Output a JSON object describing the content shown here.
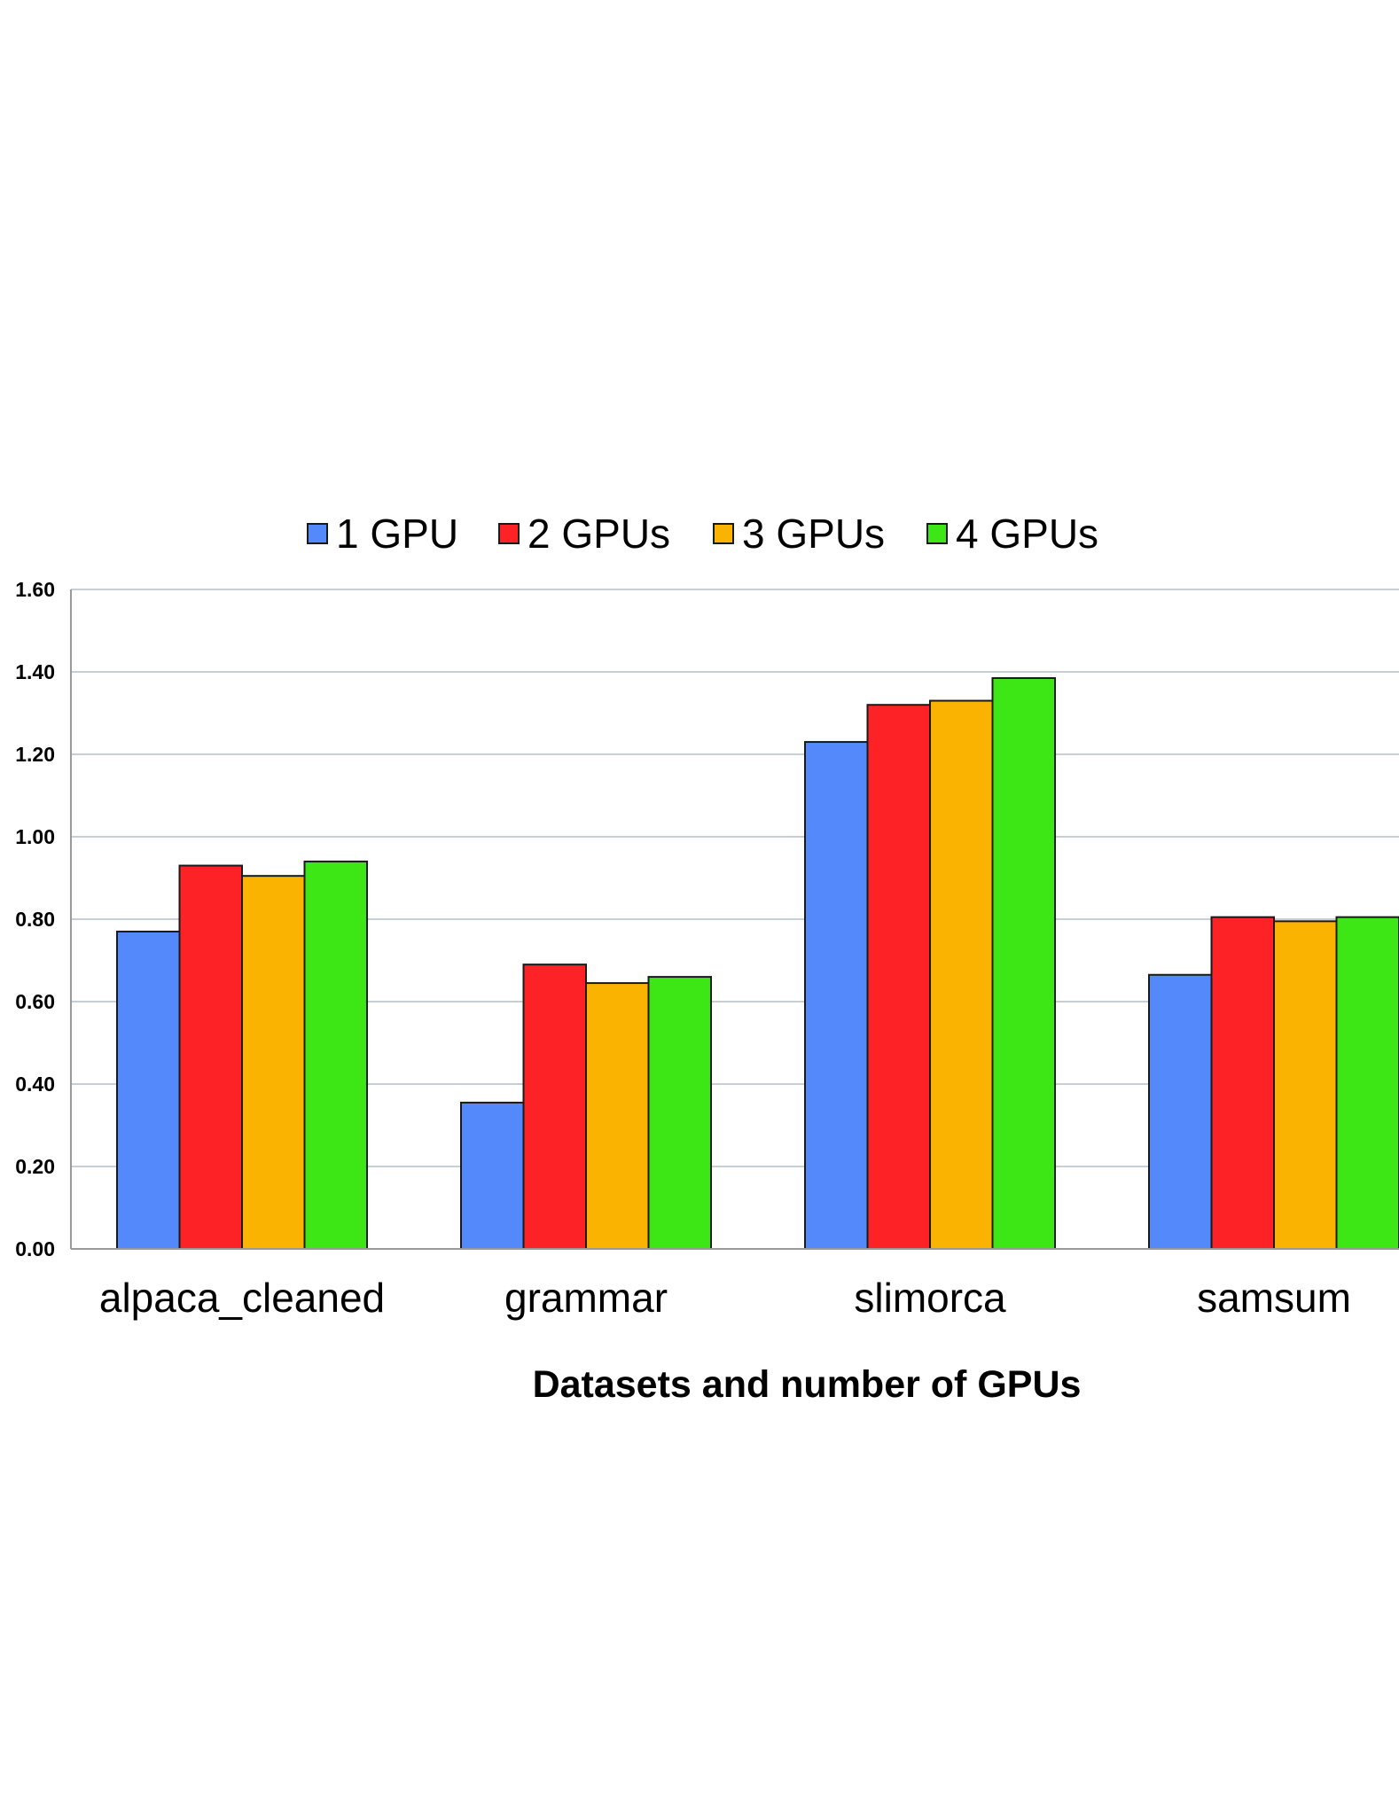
{
  "chart_data": {
    "type": "bar",
    "title": "",
    "xlabel": "Datasets and number of GPUs",
    "ylabel": "",
    "ylim": [
      0,
      1.6
    ],
    "yticks": [
      "0.00",
      "0.20",
      "0.40",
      "0.60",
      "0.80",
      "1.00",
      "1.20",
      "1.40",
      "1.60"
    ],
    "grid": true,
    "legend_position": "top",
    "categories": [
      "alpaca_cleaned",
      "grammar",
      "slimorca",
      "samsum"
    ],
    "series": [
      {
        "name": "1 GPU",
        "color": "#5389FB",
        "values": [
          0.77,
          0.355,
          1.23,
          0.665
        ]
      },
      {
        "name": "2 GPUs",
        "color": "#FD2225",
        "values": [
          0.93,
          0.69,
          1.32,
          0.805
        ]
      },
      {
        "name": "3 GPUs",
        "color": "#FBB302",
        "values": [
          0.905,
          0.645,
          1.33,
          0.795
        ]
      },
      {
        "name": "4 GPUs",
        "color": "#3DE716",
        "values": [
          0.94,
          0.66,
          1.385,
          0.805
        ]
      }
    ],
    "colors": {
      "grid": "#C7CFD6",
      "axis": "#999999",
      "bar_outline": "#1A1A1A"
    }
  }
}
